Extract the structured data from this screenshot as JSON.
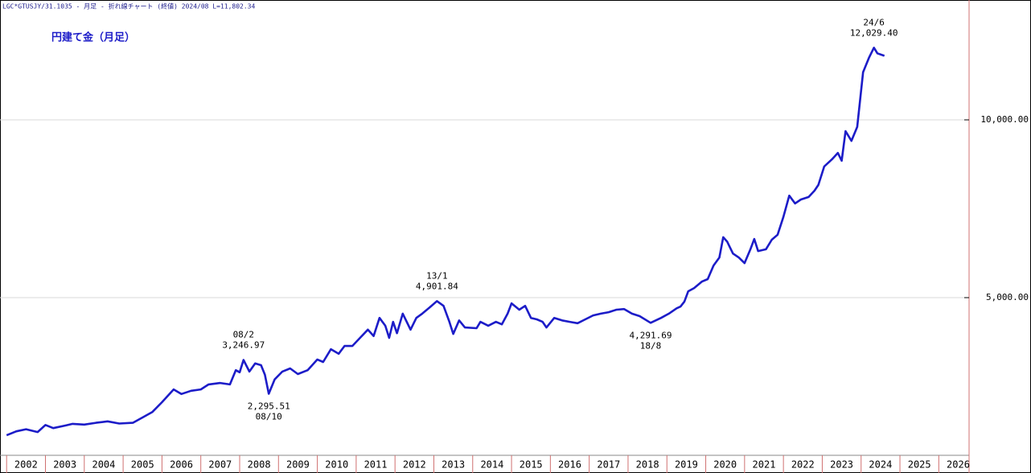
{
  "chart_data": {
    "type": "line",
    "header": "LGC*GTUSJY/31.1035 - 月足 - 折れ線チャート (終値) 2024/08 L=11,802.34",
    "title": "円建て金（月足）",
    "color": "#1c1cc8",
    "x": [
      2002.0,
      2002.25,
      2002.5,
      2002.8,
      2003.0,
      2003.2,
      2003.5,
      2003.7,
      2004.0,
      2004.3,
      2004.6,
      2004.9,
      2005.25,
      2005.5,
      2005.75,
      2006.0,
      2006.3,
      2006.5,
      2006.75,
      2007.0,
      2007.2,
      2007.5,
      2007.75,
      2007.9,
      2008.0,
      2008.1,
      2008.25,
      2008.4,
      2008.55,
      2008.65,
      2008.75,
      2008.9,
      2009.1,
      2009.3,
      2009.5,
      2009.75,
      2010.0,
      2010.15,
      2010.35,
      2010.55,
      2010.7,
      2010.9,
      2011.1,
      2011.3,
      2011.45,
      2011.6,
      2011.75,
      2011.85,
      2011.95,
      2012.05,
      2012.2,
      2012.4,
      2012.55,
      2012.7,
      2012.9,
      2013.08,
      2013.25,
      2013.4,
      2013.5,
      2013.65,
      2013.8,
      2014.1,
      2014.2,
      2014.4,
      2014.6,
      2014.75,
      2014.9,
      2015.0,
      2015.2,
      2015.35,
      2015.5,
      2015.65,
      2015.8,
      2015.9,
      2016.1,
      2016.3,
      2016.5,
      2016.7,
      2016.9,
      2017.1,
      2017.3,
      2017.5,
      2017.7,
      2017.9,
      2018.1,
      2018.3,
      2018.58,
      2018.85,
      2019.05,
      2019.25,
      2019.35,
      2019.45,
      2019.55,
      2019.7,
      2019.9,
      2020.05,
      2020.2,
      2020.35,
      2020.45,
      2020.55,
      2020.7,
      2020.85,
      2021.0,
      2021.15,
      2021.25,
      2021.35,
      2021.55,
      2021.7,
      2021.85,
      2022.0,
      2022.15,
      2022.3,
      2022.45,
      2022.65,
      2022.8,
      2022.9,
      2023.05,
      2023.25,
      2023.4,
      2023.5,
      2023.6,
      2023.75,
      2023.9,
      2024.05,
      2024.2,
      2024.33,
      2024.42,
      2024.6
    ],
    "values": [
      1130,
      1240,
      1300,
      1220,
      1420,
      1330,
      1400,
      1450,
      1430,
      1480,
      1520,
      1460,
      1480,
      1630,
      1780,
      2060,
      2420,
      2290,
      2380,
      2420,
      2560,
      2600,
      2560,
      2960,
      2900,
      3247,
      2920,
      3150,
      3100,
      2830,
      2296,
      2700,
      2920,
      3010,
      2850,
      2960,
      3260,
      3190,
      3550,
      3420,
      3640,
      3640,
      3870,
      4100,
      3920,
      4430,
      4210,
      3870,
      4320,
      4000,
      4550,
      4100,
      4430,
      4550,
      4730,
      4902,
      4770,
      4320,
      3980,
      4360,
      4160,
      4140,
      4320,
      4210,
      4320,
      4250,
      4550,
      4840,
      4660,
      4770,
      4430,
      4390,
      4320,
      4160,
      4430,
      4360,
      4320,
      4280,
      4390,
      4500,
      4550,
      4590,
      4660,
      4680,
      4550,
      4480,
      4292,
      4430,
      4550,
      4700,
      4750,
      4890,
      5180,
      5270,
      5450,
      5520,
      5900,
      6130,
      6700,
      6580,
      6240,
      6130,
      5970,
      6360,
      6650,
      6310,
      6360,
      6630,
      6770,
      7270,
      7870,
      7650,
      7760,
      7830,
      8010,
      8170,
      8690,
      8890,
      9070,
      8850,
      9680,
      9410,
      9800,
      11340,
      11740,
      12029,
      11870,
      11802
    ],
    "xlim": [
      2001.83,
      2026.78
    ],
    "xticks": [
      2002,
      2003,
      2004,
      2005,
      2006,
      2007,
      2008,
      2009,
      2010,
      2011,
      2012,
      2013,
      2014,
      2015,
      2016,
      2017,
      2018,
      2019,
      2020,
      2021,
      2022,
      2023,
      2024,
      2025,
      2026
    ],
    "ylim": [
      566,
      13371
    ],
    "yticks": [
      {
        "value": 5000,
        "label": "5,000.00"
      },
      {
        "value": 10000,
        "label": "10,000.00"
      }
    ],
    "grid": true,
    "annotations": [
      {
        "date": "08/2",
        "label": "3,246.97",
        "value": 3246.97,
        "x": 2008.1,
        "placement": "above"
      },
      {
        "date": "08/10",
        "label": "2,295.51",
        "value": 2295.51,
        "x": 2008.75,
        "placement": "below"
      },
      {
        "date": "13/1",
        "label": "4,901.84",
        "value": 4901.84,
        "x": 2013.08,
        "placement": "above"
      },
      {
        "date": "18/8",
        "label": "4,291.69",
        "value": 4291.69,
        "x": 2018.58,
        "placement": "below"
      },
      {
        "date": "24/6",
        "label": "12,029.40",
        "value": 12029.4,
        "x": 2024.33,
        "placement": "above"
      }
    ]
  }
}
